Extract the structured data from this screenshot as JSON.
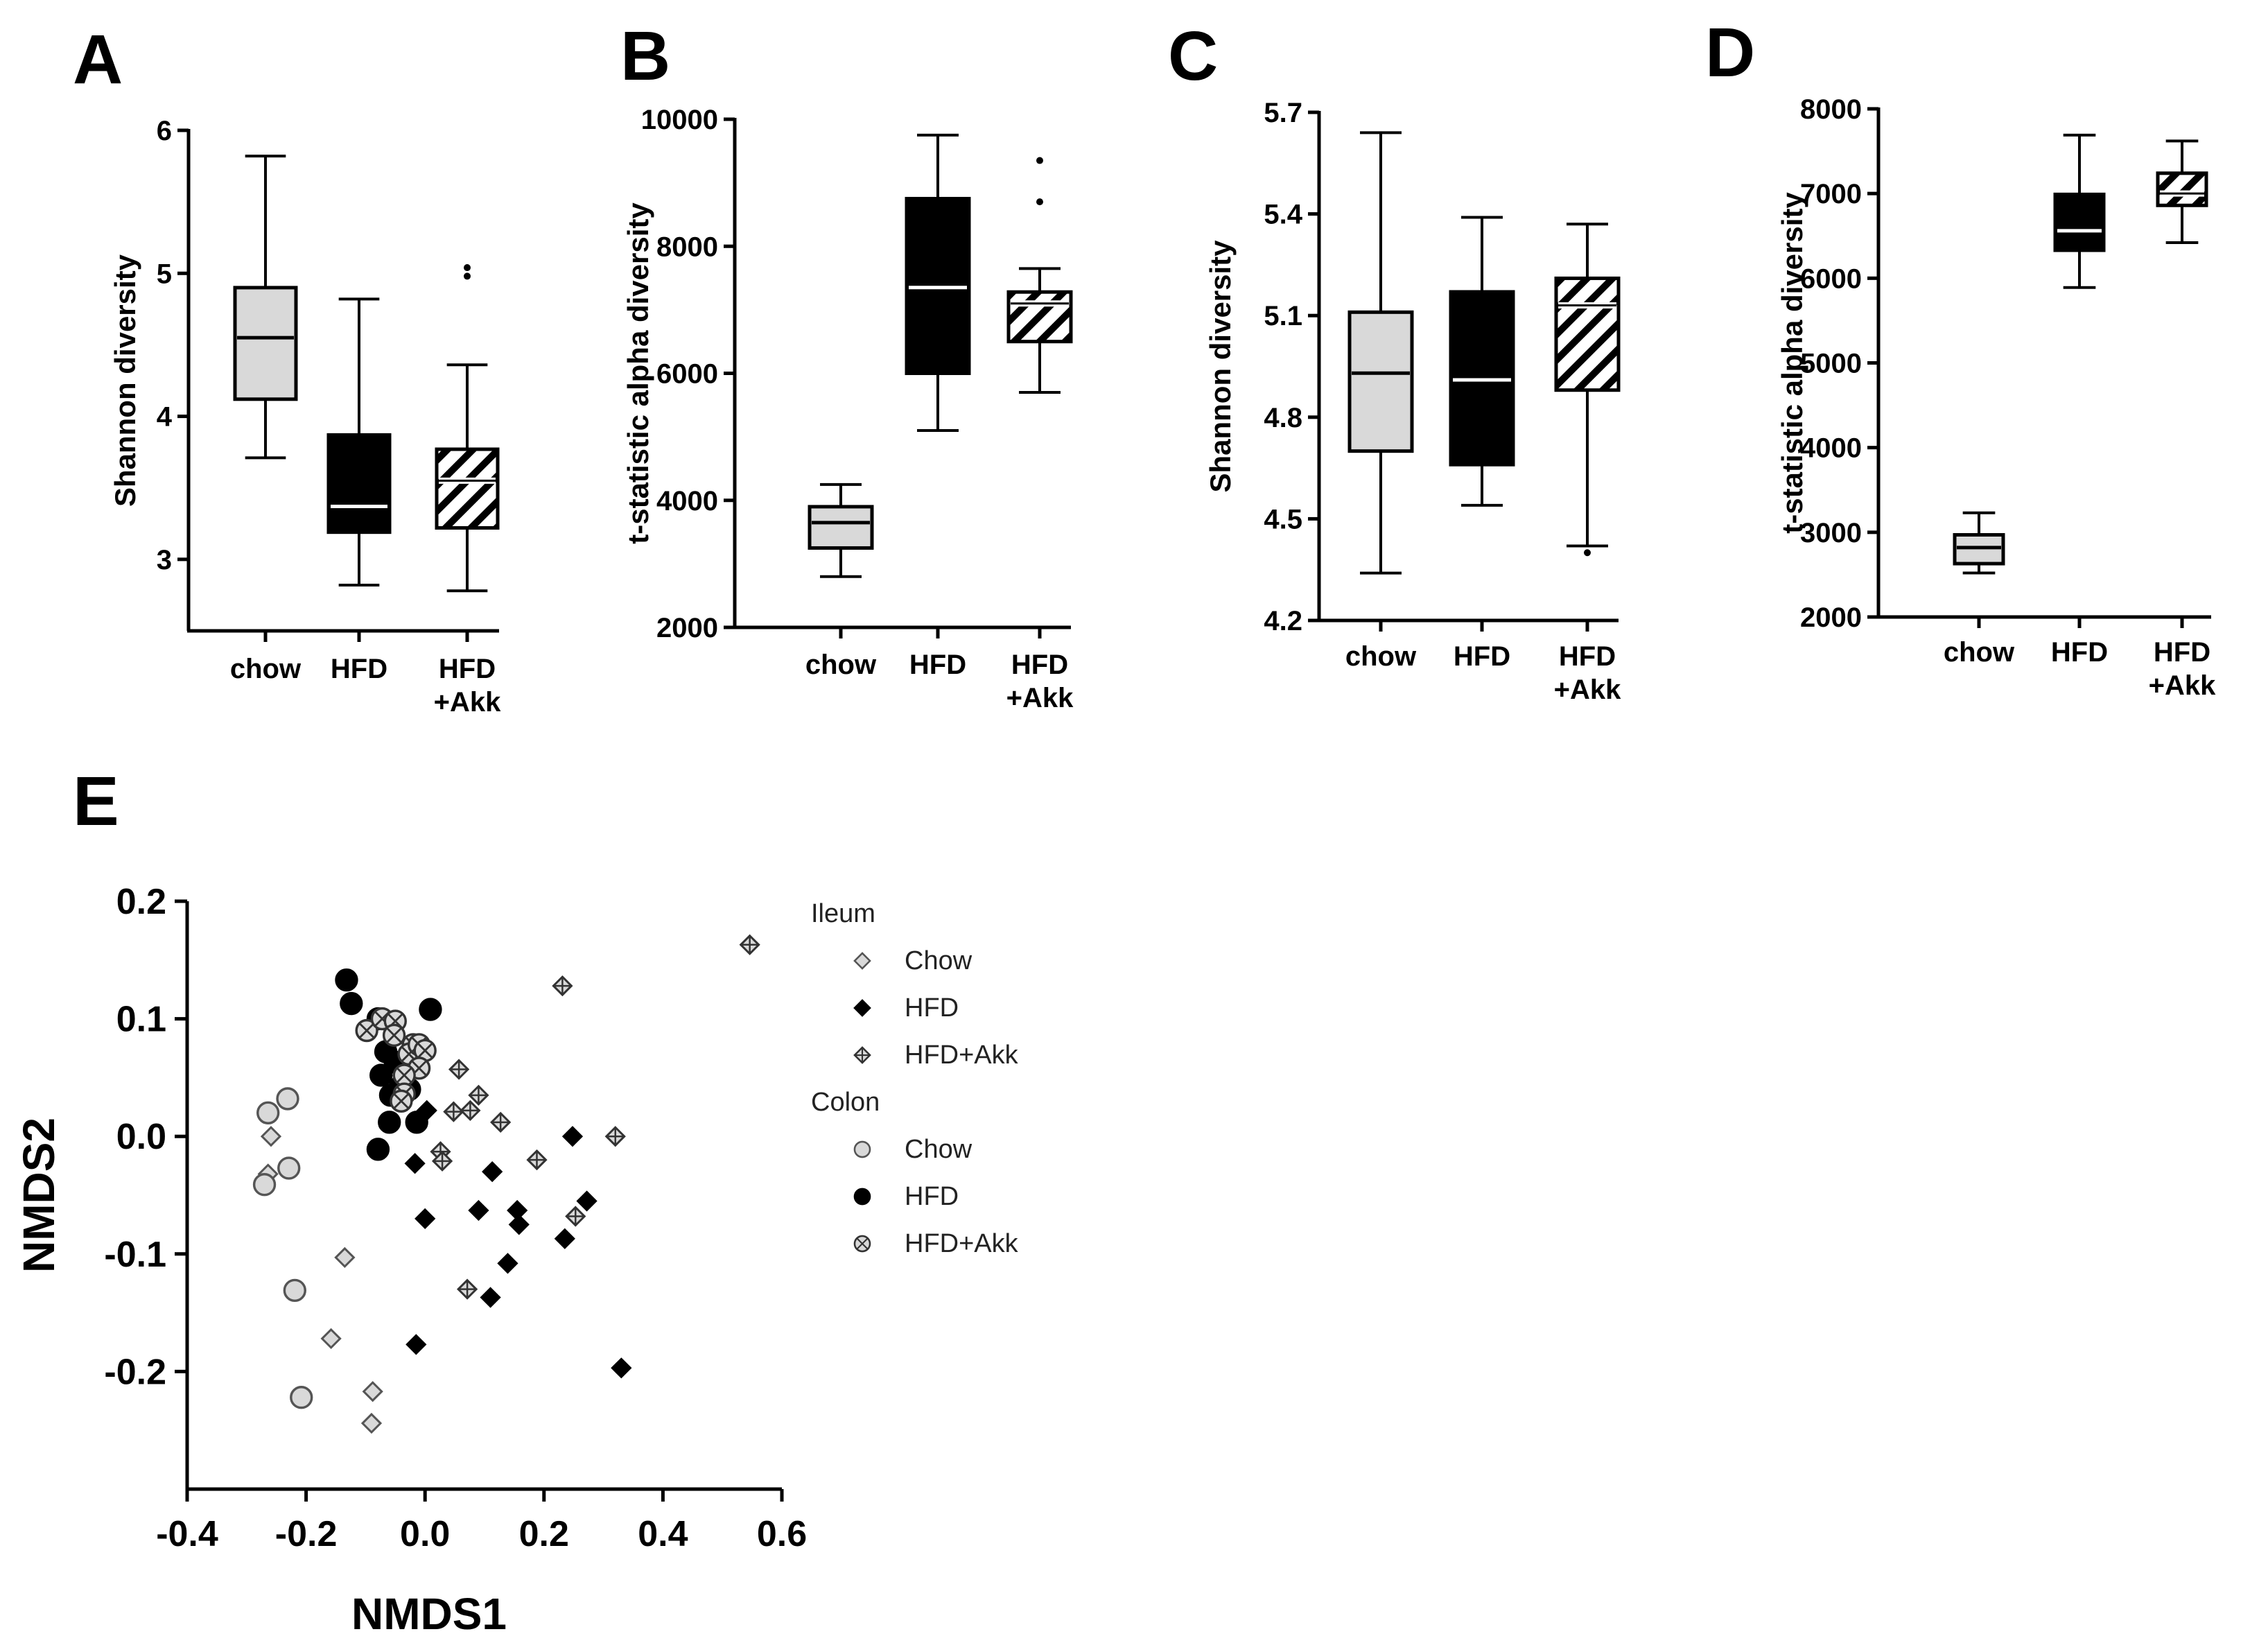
{
  "panels": {
    "A": "A",
    "B": "B",
    "C": "C",
    "D": "D",
    "E": "E"
  },
  "colors": {
    "chow": "#d9d9d9",
    "hfd": "#000000",
    "hfd_akk": "hatched",
    "axis": "#000000"
  },
  "chart_data": [
    {
      "panel": "A",
      "type": "box",
      "ylabel": "Shannon diversity",
      "ylim": [
        2.5,
        6
      ],
      "yticks": [
        "3",
        "4",
        "5",
        "6"
      ],
      "ytick_values": [
        3,
        4,
        5,
        6
      ],
      "categories": [
        "chow",
        "HFD",
        "HFD\n+Akk"
      ],
      "category_lines": [
        [
          "chow"
        ],
        [
          "HFD"
        ],
        [
          "HFD",
          "+Akk"
        ]
      ],
      "boxes": [
        {
          "min": 3.71,
          "q1": 4.12,
          "median": 4.55,
          "q3": 4.9,
          "max": 5.82,
          "outliers": [],
          "fill": "chow"
        },
        {
          "min": 2.82,
          "q1": 3.19,
          "median": 3.37,
          "q3": 3.87,
          "max": 4.82,
          "outliers": [],
          "fill": "hfd"
        },
        {
          "min": 2.78,
          "q1": 3.22,
          "median": 3.55,
          "q3": 3.77,
          "max": 4.36,
          "outliers": [
            4.98,
            5.04
          ],
          "fill": "hfd_akk"
        }
      ]
    },
    {
      "panel": "B",
      "type": "box",
      "ylabel": "t-statistic alpha diversity",
      "ylim": [
        2000,
        10000
      ],
      "yticks": [
        "2000",
        "4000",
        "6000",
        "8000",
        "10000"
      ],
      "ytick_values": [
        2000,
        4000,
        6000,
        8000,
        10000
      ],
      "categories": [
        "chow",
        "HFD",
        "HFD\n+Akk"
      ],
      "category_lines": [
        [
          "chow"
        ],
        [
          "HFD"
        ],
        [
          "HFD",
          "+Akk"
        ]
      ],
      "boxes": [
        {
          "min": 2800,
          "q1": 3250,
          "median": 3650,
          "q3": 3900,
          "max": 4250,
          "outliers": [],
          "fill": "chow"
        },
        {
          "min": 5100,
          "q1": 6000,
          "median": 7350,
          "q3": 8750,
          "max": 9750,
          "outliers": [],
          "fill": "hfd"
        },
        {
          "min": 5700,
          "q1": 6500,
          "median": 7100,
          "q3": 7280,
          "max": 7650,
          "outliers": [
            8700,
            9350
          ],
          "fill": "hfd_akk"
        }
      ]
    },
    {
      "panel": "C",
      "type": "box",
      "ylabel": "Shannon diversity",
      "ylim": [
        4.2,
        5.7
      ],
      "yticks": [
        "4.2",
        "4.5",
        "4.8",
        "5.1",
        "5.4",
        "5.7"
      ],
      "ytick_values": [
        4.2,
        4.5,
        4.8,
        5.1,
        5.4,
        5.7
      ],
      "categories": [
        "chow",
        "HFD",
        "HFD\n+Akk"
      ],
      "category_lines": [
        [
          "chow"
        ],
        [
          "HFD"
        ],
        [
          "HFD",
          "+Akk"
        ]
      ],
      "boxes": [
        {
          "min": 4.34,
          "q1": 4.7,
          "median": 4.93,
          "q3": 5.11,
          "max": 5.64,
          "outliers": [],
          "fill": "chow"
        },
        {
          "min": 4.54,
          "q1": 4.66,
          "median": 4.91,
          "q3": 5.17,
          "max": 5.39,
          "outliers": [],
          "fill": "hfd"
        },
        {
          "min": 4.42,
          "q1": 4.88,
          "median": 5.13,
          "q3": 5.21,
          "max": 5.37,
          "outliers": [
            4.4
          ],
          "fill": "hfd_akk"
        }
      ]
    },
    {
      "panel": "D",
      "type": "box",
      "ylabel": "t-statistic alpha diversity",
      "ylim": [
        2000,
        8000
      ],
      "yticks": [
        "2000",
        "3000",
        "4000",
        "5000",
        "6000",
        "7000",
        "8000"
      ],
      "ytick_values": [
        2000,
        3000,
        4000,
        5000,
        6000,
        7000,
        8000
      ],
      "categories": [
        "chow",
        "HFD",
        "HFD\n+Akk"
      ],
      "category_lines": [
        [
          "chow"
        ],
        [
          "HFD"
        ],
        [
          "HFD",
          "+Akk"
        ]
      ],
      "boxes": [
        {
          "min": 2520,
          "q1": 2630,
          "median": 2820,
          "q3": 2970,
          "max": 3230,
          "outliers": [],
          "fill": "chow"
        },
        {
          "min": 5890,
          "q1": 6330,
          "median": 6560,
          "q3": 6990,
          "max": 7690,
          "outliers": [],
          "fill": "hfd"
        },
        {
          "min": 6420,
          "q1": 6860,
          "median": 7000,
          "q3": 7240,
          "max": 7620,
          "outliers": [],
          "fill": "hfd_akk"
        }
      ]
    },
    {
      "panel": "E",
      "type": "scatter",
      "xlabel": "NMDS1",
      "ylabel": "NMDS2",
      "xlim": [
        -0.4,
        0.6
      ],
      "ylim": [
        -0.3,
        0.2
      ],
      "xticks": [
        "-0.4",
        "-0.2",
        "0.0",
        "0.2",
        "0.4",
        "0.6"
      ],
      "xtick_values": [
        -0.4,
        -0.2,
        0.0,
        0.2,
        0.4,
        0.6
      ],
      "yticks": [
        "0.2",
        "0.1",
        "0.0",
        "-0.1",
        "-0.2"
      ],
      "ytick_values": [
        0.2,
        0.1,
        0.0,
        -0.1,
        -0.2
      ],
      "legend": {
        "placement": "right",
        "groups": [
          {
            "title": "Ileum",
            "entries": [
              {
                "label": "Chow",
                "marker": "diamond-gray"
              },
              {
                "label": "HFD",
                "marker": "diamond-black"
              },
              {
                "label": "HFD+Akk",
                "marker": "diamond-cross"
              }
            ]
          },
          {
            "title": "Colon",
            "entries": [
              {
                "label": "Chow",
                "marker": "circle-gray"
              },
              {
                "label": "HFD",
                "marker": "circle-black"
              },
              {
                "label": "HFD+Akk",
                "marker": "circle-x"
              }
            ]
          }
        ]
      },
      "series": [
        {
          "name": "Ileum Chow",
          "marker": "diamond-gray",
          "points": [
            [
              -0.259,
              0.0
            ],
            [
              -0.264,
              -0.032
            ],
            [
              -0.135,
              -0.103
            ],
            [
              -0.158,
              -0.172
            ],
            [
              -0.088,
              -0.217
            ],
            [
              -0.09,
              -0.244
            ]
          ]
        },
        {
          "name": "Ileum HFD",
          "marker": "diamond-black",
          "points": [
            [
              -0.017,
              -0.023
            ],
            [
              0.003,
              0.022
            ],
            [
              0.113,
              -0.03
            ],
            [
              0.09,
              -0.063
            ],
            [
              0.0,
              -0.07
            ],
            [
              0.155,
              -0.063
            ],
            [
              0.158,
              -0.075
            ],
            [
              0.139,
              -0.108
            ],
            [
              0.11,
              -0.137
            ],
            [
              -0.015,
              -0.177
            ],
            [
              0.248,
              0.0
            ],
            [
              0.272,
              -0.055
            ],
            [
              0.235,
              -0.087
            ],
            [
              0.33,
              -0.197
            ]
          ]
        },
        {
          "name": "Ileum HFD+Akk",
          "marker": "diamond-cross",
          "points": [
            [
              0.546,
              0.163
            ],
            [
              0.231,
              0.128
            ],
            [
              0.057,
              0.057
            ],
            [
              0.048,
              0.021
            ],
            [
              0.09,
              0.035
            ],
            [
              0.076,
              0.022
            ],
            [
              0.127,
              0.012
            ],
            [
              0.188,
              -0.02
            ],
            [
              0.026,
              -0.013
            ],
            [
              0.029,
              -0.021
            ],
            [
              0.32,
              0.0
            ],
            [
              0.253,
              -0.068
            ],
            [
              0.071,
              -0.13
            ]
          ]
        },
        {
          "name": "Colon Chow",
          "marker": "circle-gray",
          "points": [
            [
              -0.264,
              0.02
            ],
            [
              -0.231,
              0.032
            ],
            [
              -0.229,
              -0.027
            ],
            [
              -0.27,
              -0.041
            ],
            [
              -0.219,
              -0.131
            ],
            [
              -0.208,
              -0.222
            ]
          ]
        },
        {
          "name": "Colon HFD",
          "marker": "circle-black",
          "points": [
            [
              -0.132,
              0.133
            ],
            [
              -0.124,
              0.113
            ],
            [
              -0.079,
              0.1
            ],
            [
              -0.066,
              0.072
            ],
            [
              -0.05,
              0.063
            ],
            [
              -0.074,
              0.052
            ],
            [
              -0.042,
              0.042
            ],
            [
              -0.058,
              0.035
            ],
            [
              -0.06,
              0.012
            ],
            [
              -0.014,
              0.012
            ],
            [
              -0.026,
              0.04
            ],
            [
              0.009,
              0.108
            ],
            [
              -0.079,
              -0.011
            ],
            [
              -0.03,
              0.063
            ]
          ]
        },
        {
          "name": "Colon HFD+Akk",
          "marker": "circle-x",
          "points": [
            [
              -0.098,
              0.09
            ],
            [
              -0.072,
              0.1
            ],
            [
              -0.05,
              0.098
            ],
            [
              -0.052,
              0.086
            ],
            [
              -0.02,
              0.078
            ],
            [
              -0.027,
              0.07
            ],
            [
              -0.01,
              0.078
            ],
            [
              0.0,
              0.073
            ],
            [
              -0.01,
              0.058
            ],
            [
              -0.035,
              0.052
            ],
            [
              -0.035,
              0.036
            ],
            [
              -0.04,
              0.03
            ]
          ]
        }
      ]
    }
  ]
}
